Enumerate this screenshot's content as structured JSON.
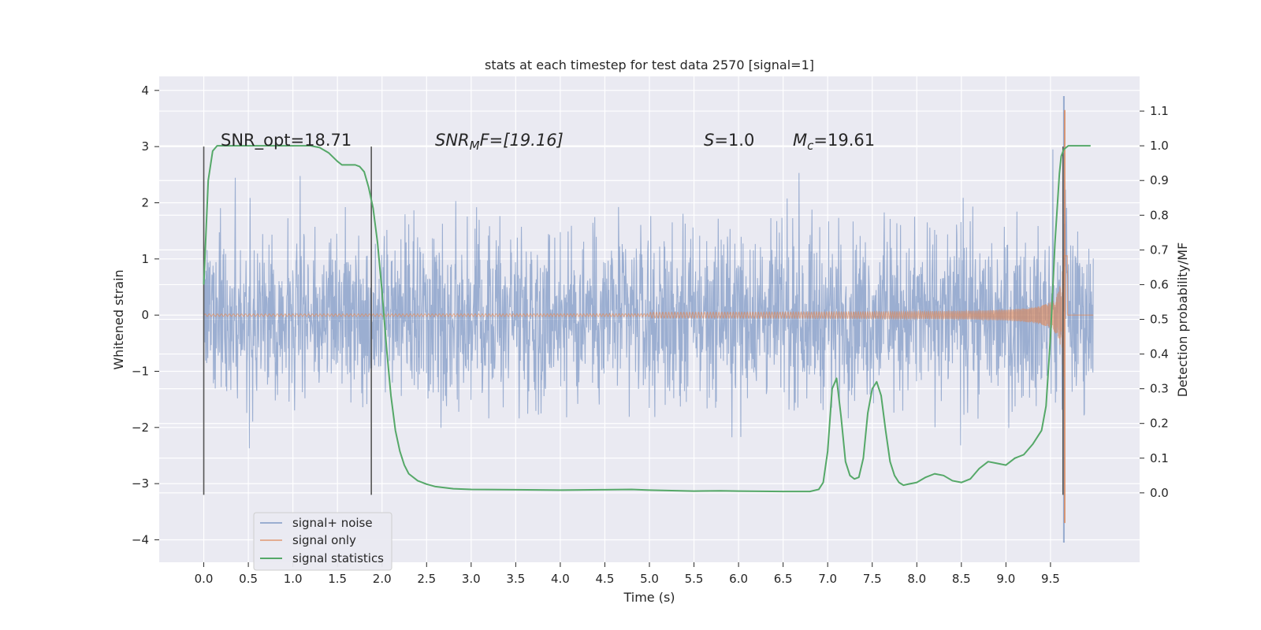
{
  "chart_data": {
    "type": "line",
    "title": "stats at each timestep for test data 2570 [signal=1]",
    "xlabel": "Time (s)",
    "ylabel": "Whitened strain",
    "y2label": "Detection probability/MF",
    "xlim": [
      -0.5,
      10.5
    ],
    "ylim": [
      -4.4,
      4.25
    ],
    "y2lim": [
      -0.2,
      1.2
    ],
    "xticks": [
      "0.0",
      "0.5",
      "1.0",
      "1.5",
      "2.0",
      "2.5",
      "3.0",
      "3.5",
      "4.0",
      "4.5",
      "5.0",
      "5.5",
      "6.0",
      "6.5",
      "7.0",
      "7.5",
      "8.0",
      "8.5",
      "9.0",
      "9.5"
    ],
    "yticks": [
      "4",
      "3",
      "2",
      "1",
      "0",
      "−1",
      "−2",
      "−3",
      "−4"
    ],
    "y2ticks": [
      "1.1",
      "1.0",
      "0.9",
      "0.8",
      "0.7",
      "0.6",
      "0.5",
      "0.4",
      "0.3",
      "0.2",
      "0.1",
      "0.0"
    ],
    "grid": true,
    "legend_position": "lower-left",
    "colors": {
      "background": "#eaeaf2",
      "noise": "#4c72b0",
      "signal": "#dd8452",
      "stats": "#55a868",
      "vline": "#555555"
    },
    "annotations": {
      "snr_opt": "SNR_opt=18.71",
      "snr_mf_prefix": "SNR",
      "snr_mf_sub": "M",
      "snr_mf_suffix": "F=[19.16]",
      "s_var": "S",
      "s_value": "=1.0",
      "mc_var": "M",
      "mc_sub": "c",
      "mc_value": "=19.61"
    },
    "vlines": [
      0.0,
      1.88,
      9.64
    ],
    "series": [
      {
        "name": "signal+ noise",
        "kind": "noise",
        "x_range": [
          0.0,
          9.98
        ],
        "envelope": 1.2,
        "peak_max": 3.9,
        "peak_min": -4.05
      },
      {
        "name": "signal only",
        "kind": "chirp",
        "merger_time": 9.65,
        "x_range": [
          0.0,
          9.98
        ],
        "peak_max": 3.65,
        "peak_min": -3.7
      },
      {
        "name": "signal statistics",
        "kind": "line",
        "x": [
          0.0,
          0.05,
          0.1,
          0.15,
          0.2,
          0.3,
          0.5,
          1.0,
          1.2,
          1.3,
          1.4,
          1.5,
          1.55,
          1.6,
          1.7,
          1.75,
          1.8,
          1.85,
          1.9,
          1.95,
          2.0,
          2.05,
          2.1,
          2.15,
          2.2,
          2.25,
          2.3,
          2.4,
          2.5,
          2.6,
          2.8,
          3.0,
          3.5,
          4.0,
          4.5,
          4.8,
          5.0,
          5.5,
          5.8,
          6.0,
          6.5,
          6.8,
          6.9,
          6.95,
          7.0,
          7.05,
          7.1,
          7.15,
          7.2,
          7.25,
          7.3,
          7.35,
          7.4,
          7.45,
          7.5,
          7.55,
          7.6,
          7.65,
          7.7,
          7.75,
          7.8,
          7.85,
          7.9,
          8.0,
          8.1,
          8.2,
          8.3,
          8.4,
          8.5,
          8.6,
          8.7,
          8.8,
          8.9,
          9.0,
          9.1,
          9.2,
          9.3,
          9.4,
          9.45,
          9.5,
          9.55,
          9.6,
          9.62,
          9.65,
          9.7,
          9.75,
          9.8,
          9.9,
          9.95
        ],
        "y": [
          0.6,
          0.9,
          0.985,
          1.0,
          1.0,
          1.0,
          1.0,
          1.0,
          1.0,
          0.995,
          0.98,
          0.955,
          0.945,
          0.945,
          0.945,
          0.94,
          0.925,
          0.88,
          0.82,
          0.72,
          0.58,
          0.42,
          0.28,
          0.18,
          0.12,
          0.08,
          0.055,
          0.035,
          0.025,
          0.018,
          0.012,
          0.01,
          0.009,
          0.008,
          0.009,
          0.01,
          0.008,
          0.005,
          0.006,
          0.005,
          0.004,
          0.004,
          0.01,
          0.03,
          0.12,
          0.3,
          0.33,
          0.22,
          0.09,
          0.05,
          0.04,
          0.045,
          0.1,
          0.23,
          0.3,
          0.32,
          0.28,
          0.18,
          0.09,
          0.05,
          0.03,
          0.022,
          0.025,
          0.03,
          0.045,
          0.055,
          0.05,
          0.035,
          0.03,
          0.04,
          0.07,
          0.09,
          0.085,
          0.08,
          0.1,
          0.11,
          0.14,
          0.18,
          0.25,
          0.45,
          0.72,
          0.92,
          0.97,
          0.99,
          1.0,
          1.0,
          1.0,
          1.0,
          1.0
        ]
      }
    ]
  }
}
